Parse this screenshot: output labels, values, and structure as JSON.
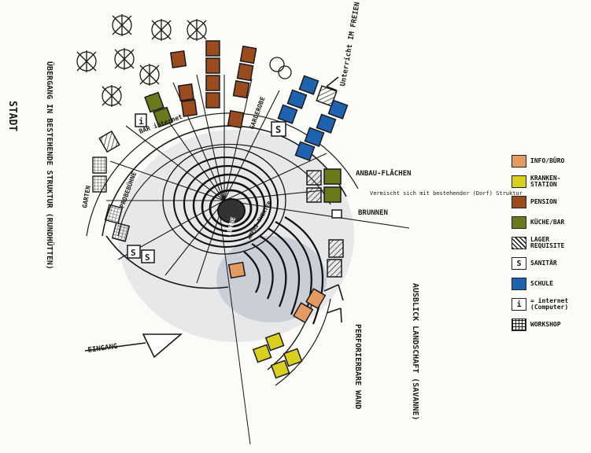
{
  "labels": {
    "stadt": "STADT",
    "uebergang": "ÜBERGANG IN BESTEHENDE STRUKTUR (RUNDHÜTTEN)",
    "bar": "BAR internet",
    "probebuehne": "PROBEBÜHNE",
    "garderobe": "GARDEROBE",
    "garten": "GARTEN",
    "unterricht": "Unterricht IM FREIEN (Wochentl.)",
    "anbauflaechen": "ANBAU-FLÄCHEN",
    "brunnen": "BRUNNEN",
    "vermischt": "Vermischt sich mit bestehender (Dorf) Struktur",
    "buehne": "BÜHNE",
    "amphi": "AMPHI-THEATER",
    "eingang": "EINGANG",
    "perforierbare": "PERFORIERBARE WAND",
    "ausblick": "AUSBLICK LANDSCHAFT (SAVANNE)"
  },
  "legend": [
    {
      "key": "info",
      "symbol": "",
      "color": "#e59a62",
      "label": "INFO/BÜRO"
    },
    {
      "key": "kranken",
      "symbol": "",
      "color": "#d8cf1f",
      "label": "KRANKEN-\nSTATION"
    },
    {
      "key": "pension",
      "symbol": "",
      "color": "#9a4c1e",
      "label": "PENSION"
    },
    {
      "key": "kueche",
      "symbol": "",
      "color": "#687a1c",
      "label": "KÜCHE/BAR"
    },
    {
      "key": "lager",
      "symbol": "",
      "color": "hatch",
      "label": "LAGER\nREQUISITE"
    },
    {
      "key": "sanitaer",
      "symbol": "S",
      "color": "#ffffff",
      "label": "SANITÄR"
    },
    {
      "key": "schule",
      "symbol": "",
      "color": "#1f63b0",
      "label": "SCHULE"
    },
    {
      "key": "internet",
      "symbol": "i",
      "color": "#ffffff",
      "label": "= internet\n(Computer)"
    },
    {
      "key": "workshop",
      "symbol": "",
      "color": "grid",
      "label": "WORKSHOP"
    }
  ],
  "colors": {
    "info": "#e59a62",
    "kranken": "#d8cf1f",
    "pension": "#9a4c1e",
    "kueche": "#687a1c",
    "schule": "#1f63b0",
    "ink": "#1a1a1a"
  }
}
